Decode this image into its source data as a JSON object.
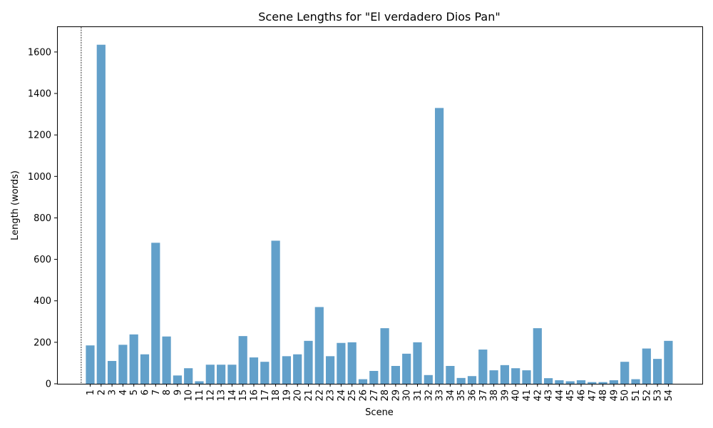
{
  "chart_data": {
    "type": "bar",
    "title": "Scene Lengths for \"El verdadero Dios Pan\"",
    "xlabel": "Scene",
    "ylabel": "Length (words)",
    "ylim": [
      0,
      1720
    ],
    "yticks": [
      0,
      200,
      400,
      600,
      800,
      1000,
      1200,
      1400,
      1600
    ],
    "grid": false,
    "marker_line_at_category": "1",
    "bar_color": "#1f77b4",
    "categories": [
      "1",
      "2",
      "3",
      "4",
      "5",
      "6",
      "7",
      "8",
      "9",
      "10",
      "11",
      "12",
      "13",
      "14",
      "15",
      "16",
      "17",
      "18",
      "19",
      "20",
      "21",
      "22",
      "23",
      "24",
      "25",
      "26",
      "27",
      "28",
      "29",
      "30",
      "31",
      "32",
      "33",
      "34",
      "35",
      "36",
      "37",
      "38",
      "39",
      "40",
      "41",
      "42",
      "43",
      "44",
      "45",
      "46",
      "47",
      "48",
      "49",
      "50",
      "51",
      "52",
      "53",
      "54"
    ],
    "values": [
      185,
      1635,
      110,
      188,
      238,
      142,
      680,
      228,
      40,
      75,
      12,
      92,
      92,
      92,
      230,
      127,
      106,
      690,
      133,
      142,
      207,
      370,
      133,
      197,
      200,
      22,
      62,
      268,
      86,
      145,
      200,
      42,
      1330,
      86,
      28,
      37,
      165,
      65,
      90,
      75,
      65,
      268,
      27,
      17,
      12,
      17,
      8,
      8,
      17,
      106,
      22,
      170,
      120,
      207
    ]
  }
}
